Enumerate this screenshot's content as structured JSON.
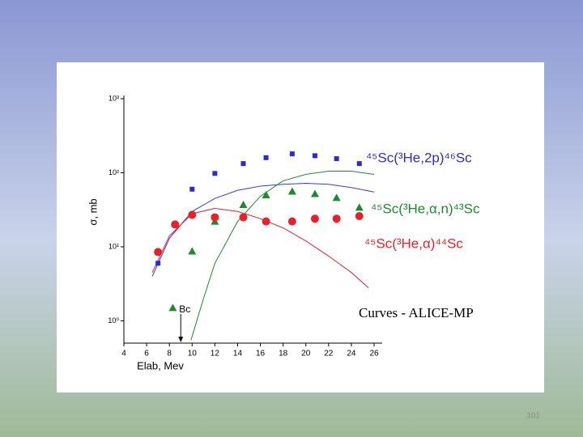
{
  "chart_data": {
    "type": "scatter",
    "yscale": "log",
    "xlabel": "Elab, Mev",
    "ylabel": "σ, mb",
    "xlim": [
      4,
      26
    ],
    "xticks": [
      4,
      6,
      8,
      10,
      12,
      14,
      16,
      18,
      20,
      22,
      24,
      26
    ],
    "ylim": [
      0.5,
      1000
    ],
    "yticks": [
      {
        "value": 1,
        "label": "10⁰"
      },
      {
        "value": 10,
        "label": "10¹"
      },
      {
        "value": 100,
        "label": "10²"
      },
      {
        "value": 1000,
        "label": "10³"
      }
    ],
    "series": [
      {
        "name": "⁴⁵Sc(³He,2p)⁴⁶Sc",
        "color": "#2b2bd6",
        "marker": "square",
        "x": [
          7,
          8.5,
          10,
          12,
          14.5,
          16.5,
          18.8,
          20.8,
          22.7,
          24.7
        ],
        "values": [
          6,
          20,
          60,
          98,
          133,
          160,
          180,
          170,
          155,
          133
        ]
      },
      {
        "name": "⁴⁵Sc(³He,α,n)⁴³Sc",
        "color": "#1e8a2e",
        "marker": "triangle",
        "x": [
          8.3,
          10,
          12,
          14.5,
          16.5,
          18.8,
          20.8,
          22.7,
          24.7
        ],
        "values": [
          1.5,
          8.7,
          22,
          37,
          50,
          56,
          52,
          46,
          34
        ]
      },
      {
        "name": "⁴⁵Sc(³He,α)⁴⁴Sc",
        "color": "#e8202a",
        "marker": "circle",
        "x": [
          7,
          8.5,
          10,
          12,
          14.5,
          16.5,
          18.8,
          20.8,
          22.7,
          24.7
        ],
        "values": [
          8.5,
          20,
          27,
          25,
          25,
          22,
          22,
          24,
          24,
          26
        ]
      }
    ],
    "curves": [
      {
        "color": "#3a3ae0",
        "x": [
          6.5,
          8,
          10,
          12,
          14,
          16,
          18,
          20,
          22,
          24,
          26
        ],
        "values": [
          4,
          13,
          30,
          45,
          58,
          66,
          70,
          72,
          70,
          63,
          55
        ]
      },
      {
        "color": "#e8202a",
        "x": [
          6.5,
          8,
          10,
          12,
          14,
          16,
          18,
          20,
          22,
          24,
          25.5
        ],
        "values": [
          4.5,
          14,
          28,
          33,
          30,
          24,
          18,
          12,
          7.5,
          4.5,
          2.8
        ]
      },
      {
        "color": "#1e8a2e",
        "x": [
          9.9,
          11,
          12,
          14,
          16,
          18,
          20,
          22,
          24,
          26
        ],
        "values": [
          0.55,
          2,
          6,
          22,
          48,
          78,
          95,
          105,
          105,
          95
        ]
      }
    ],
    "annotations": [
      {
        "text": "Bc",
        "x": 9
      },
      {
        "text": "Curves - ALICE-MP"
      }
    ]
  },
  "slide_number": 101
}
